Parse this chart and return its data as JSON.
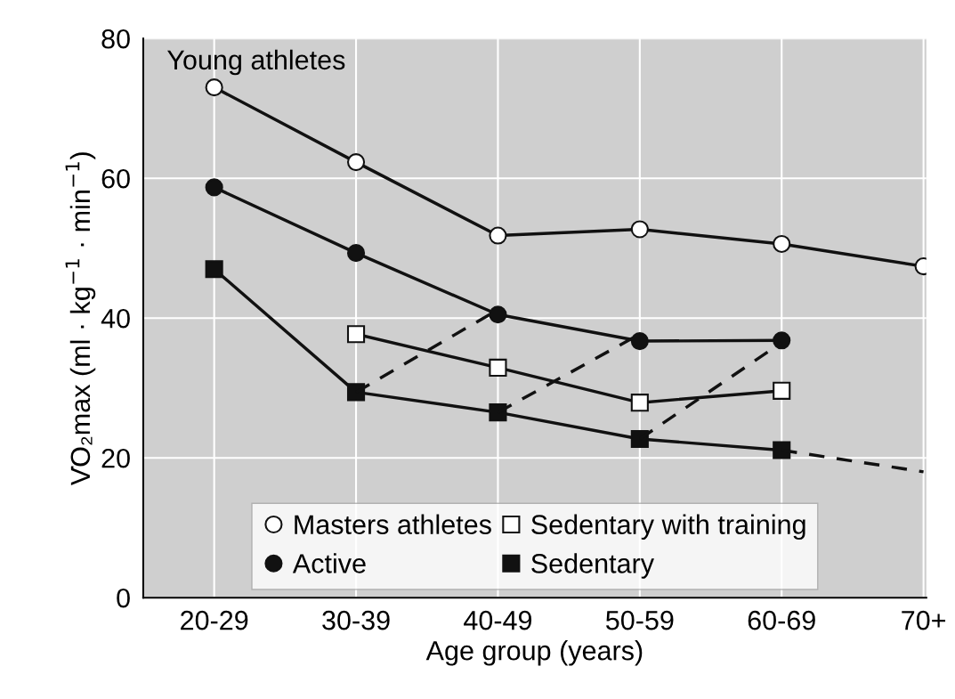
{
  "chart_data": {
    "type": "line",
    "xlabel": "Age group (years)",
    "ylabel": "V̇O₂max (ml · kg$^{−1}$ · min$^{−1}$)",
    "categories": [
      "20-29",
      "30-39",
      "40-49",
      "50-59",
      "60-69",
      "70+"
    ],
    "ylim": [
      0,
      80
    ],
    "yticks": [
      0,
      20,
      40,
      60,
      80
    ],
    "grid": true,
    "legend": "bottom",
    "line_style": "solid",
    "annotations": [
      "Young athletes"
    ],
    "series": [
      {
        "name": "Masters athletes",
        "color": "#ffffff",
        "marker": "circle",
        "values": [
          73,
          62.3,
          51.8,
          52.7,
          50.6,
          47.4
        ]
      },
      {
        "name": "Active",
        "color": "#111111",
        "marker": "circle",
        "values": [
          58.7,
          49.3,
          40.5,
          36.7,
          36.8,
          null
        ]
      },
      {
        "name": "Sedentary with training",
        "color": "#ffffff",
        "marker": "square",
        "values": [
          null,
          37.7,
          32.9,
          27.9,
          29.6,
          null
        ]
      },
      {
        "name": "Sedentary",
        "color": "#111111",
        "marker": "square",
        "values": [
          47,
          29.4,
          26.5,
          22.7,
          21.1,
          null
        ]
      },
      {
        "color": "#111111",
        "marker": "none",
        "line_style": "dashed",
        "values": [
          null,
          29.4,
          41.2,
          null,
          null,
          null
        ]
      },
      {
        "color": "#111111",
        "marker": "none",
        "line_style": "dashed",
        "values": [
          null,
          null,
          26.5,
          37.7,
          null,
          null
        ]
      },
      {
        "color": "#111111",
        "marker": "none",
        "line_style": "dashed",
        "values": [
          null,
          null,
          null,
          22.7,
          36.5,
          null
        ]
      },
      {
        "color": "#111111",
        "marker": "none",
        "line_style": "dashed",
        "values": [
          null,
          null,
          null,
          null,
          21.1,
          18
        ]
      }
    ]
  }
}
